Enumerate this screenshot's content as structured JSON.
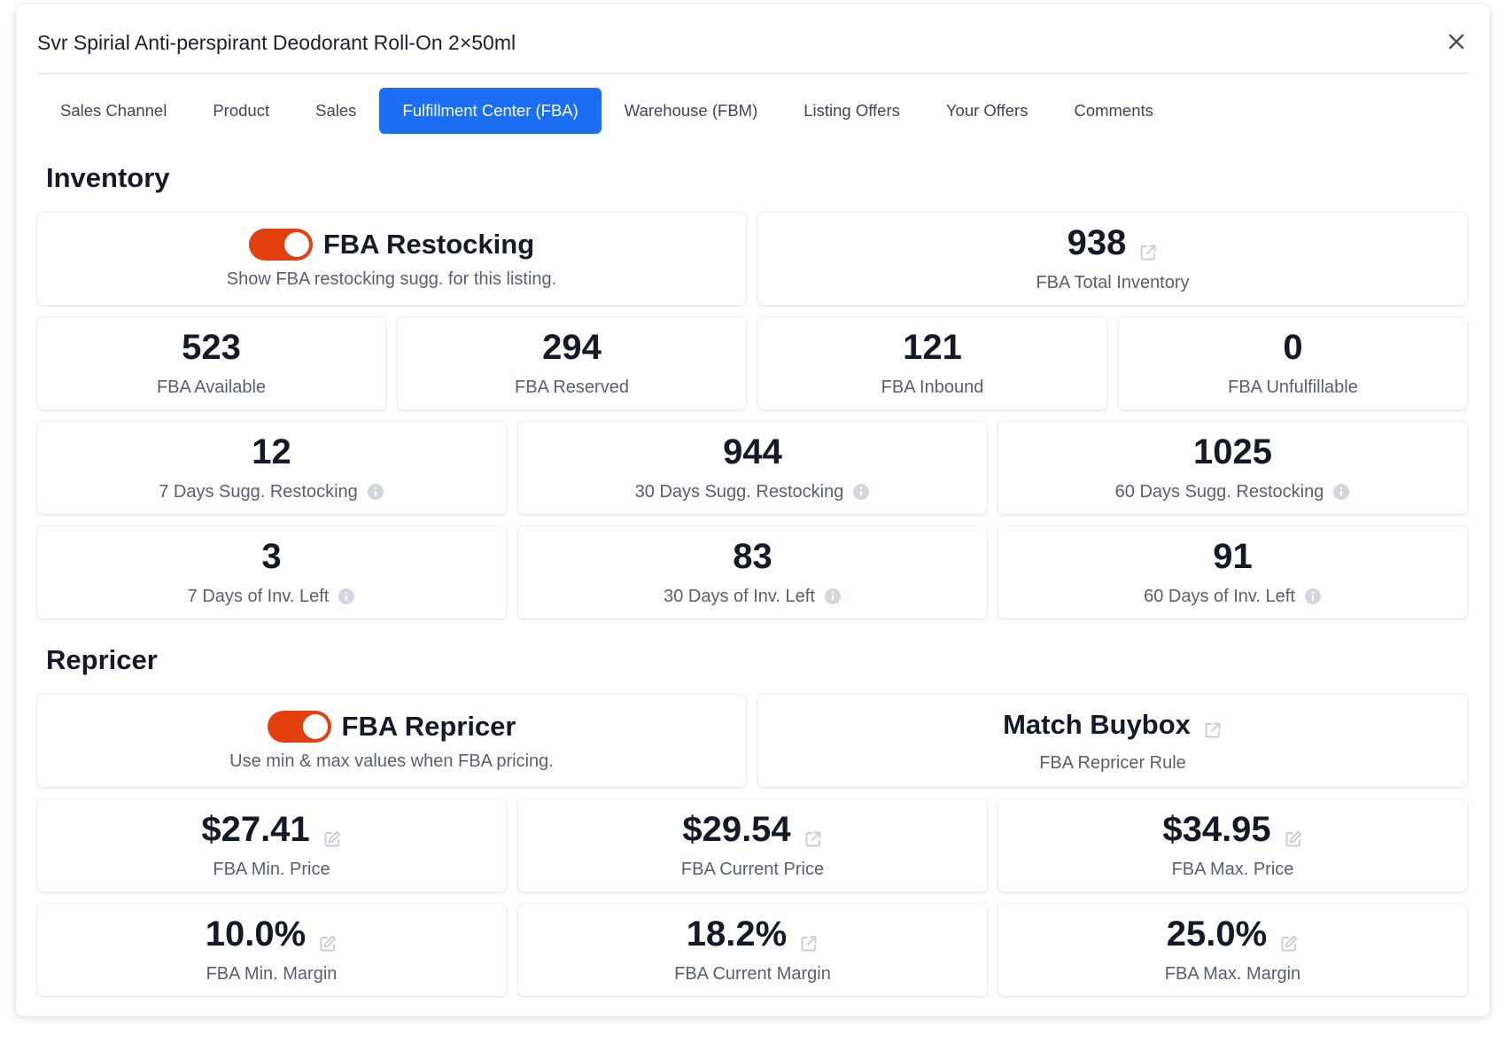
{
  "modal": {
    "title": "Svr Spirial Anti-perspirant Deodorant Roll-On 2×50ml"
  },
  "tabs": [
    {
      "label": "Sales Channel"
    },
    {
      "label": "Product"
    },
    {
      "label": "Sales"
    },
    {
      "label": "Fulfillment Center (FBA)",
      "active": true
    },
    {
      "label": "Warehouse (FBM)"
    },
    {
      "label": "Listing Offers"
    },
    {
      "label": "Your Offers"
    },
    {
      "label": "Comments"
    }
  ],
  "inventory": {
    "section_title": "Inventory",
    "restocking": {
      "title": "FBA Restocking",
      "subtitle": "Show FBA restocking sugg. for this listing.",
      "enabled": true
    },
    "total": {
      "value": "938",
      "label": "FBA Total Inventory"
    },
    "available": {
      "value": "523",
      "label": "FBA Available"
    },
    "reserved": {
      "value": "294",
      "label": "FBA Reserved"
    },
    "inbound": {
      "value": "121",
      "label": "FBA Inbound"
    },
    "unfulfillable": {
      "value": "0",
      "label": "FBA Unfulfillable"
    },
    "sugg7": {
      "value": "12",
      "label": "7 Days Sugg. Restocking"
    },
    "sugg30": {
      "value": "944",
      "label": "30 Days Sugg. Restocking"
    },
    "sugg60": {
      "value": "1025",
      "label": "60 Days Sugg. Restocking"
    },
    "left7": {
      "value": "3",
      "label": "7 Days of Inv. Left"
    },
    "left30": {
      "value": "83",
      "label": "30 Days of Inv. Left"
    },
    "left60": {
      "value": "91",
      "label": "60 Days of Inv. Left"
    }
  },
  "repricer": {
    "section_title": "Repricer",
    "toggle": {
      "title": "FBA Repricer",
      "subtitle": "Use min & max values when FBA pricing.",
      "enabled": true
    },
    "rule": {
      "value": "Match Buybox",
      "label": "FBA Repricer Rule"
    },
    "min_price": {
      "value": "$27.41",
      "label": "FBA Min. Price"
    },
    "current_price": {
      "value": "$29.54",
      "label": "FBA Current Price"
    },
    "max_price": {
      "value": "$34.95",
      "label": "FBA Max. Price"
    },
    "min_margin": {
      "value": "10.0%",
      "label": "FBA Min. Margin"
    },
    "current_margin": {
      "value": "18.2%",
      "label": "FBA Current Margin"
    },
    "max_margin": {
      "value": "25.0%",
      "label": "FBA Max. Margin"
    }
  },
  "colors": {
    "accent": "#1c6ef2",
    "toggle_on": "#e2400f"
  }
}
